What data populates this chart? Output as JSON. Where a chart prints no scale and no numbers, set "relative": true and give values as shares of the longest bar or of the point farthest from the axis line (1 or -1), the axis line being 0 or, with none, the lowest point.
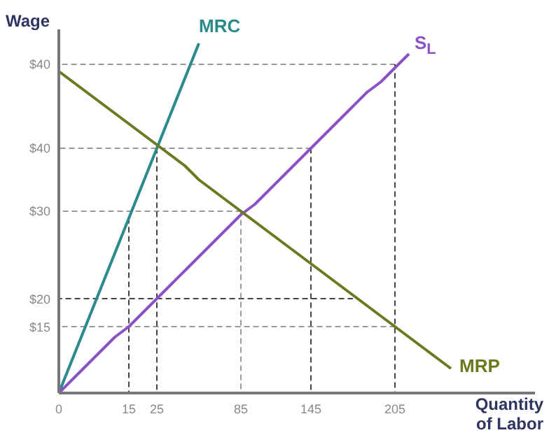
{
  "chart_data": {
    "type": "line",
    "xlabel": "Quantity of Labor",
    "ylabel": "Wage",
    "relative": true,
    "categories": [
      "0",
      null,
      null,
      null,
      null,
      "15",
      null,
      "25",
      null,
      null,
      null,
      null,
      null,
      "85",
      null,
      null,
      null,
      null,
      "145",
      null,
      null,
      null,
      null,
      null,
      "205",
      null,
      null,
      null,
      null,
      null,
      null,
      null,
      null,
      null,
      null
    ],
    "annotations": [
      {
        "text": "$15",
        "x": "0",
        "y": 0.19
      },
      {
        "text": "$20",
        "x": "0",
        "y": 0.27
      },
      {
        "text": "$30",
        "x": "0",
        "y": 0.52
      },
      {
        "text": "$40",
        "x": "0",
        "y": 0.7
      },
      {
        "text": "$40",
        "x": "0",
        "y": 0.94
      }
    ],
    "grid": false,
    "legend": false,
    "marker": "none",
    "series": [
      {
        "color": "#999999",
        "line_style": "dashed",
        "values": [
          0.94,
          0.94,
          0.94,
          0.94,
          0.94,
          0.94,
          0.94,
          0.94,
          0.94,
          0.94,
          0.94,
          0.94,
          0.94,
          0.94,
          0.94,
          0.94,
          0.94,
          0.94,
          0.94,
          0.94,
          0.94,
          0.94,
          0.94,
          0.94,
          0.94,
          null,
          null,
          null,
          null,
          null,
          null,
          null,
          null,
          null,
          null
        ]
      },
      {
        "color": "#999999",
        "line_style": "dashed",
        "values": [
          0.7,
          0.7,
          0.7,
          0.7,
          0.7,
          0.7,
          0.7,
          0.7,
          0.7,
          0.7,
          0.7,
          0.7,
          0.7,
          0.7,
          0.7,
          0.7,
          0.7,
          0.7,
          0.7,
          null,
          null,
          null,
          null,
          null,
          null,
          null,
          null,
          null,
          null,
          null,
          null,
          null,
          null,
          null,
          null
        ]
      },
      {
        "color": "#999999",
        "line_style": "dashed",
        "values": [
          0.52,
          0.52,
          0.52,
          0.52,
          0.52,
          0.52,
          0.52,
          0.52,
          0.52,
          0.52,
          0.52,
          0.52,
          0.52,
          0.52,
          null,
          null,
          null,
          null,
          null,
          null,
          null,
          null,
          null,
          null,
          null,
          null,
          null,
          null,
          null,
          null,
          null,
          null,
          null,
          null,
          null
        ]
      },
      {
        "color": "#444444",
        "line_style": "dashed",
        "values": [
          0.27,
          0.27,
          0.27,
          0.27,
          0.27,
          0.27,
          0.27,
          0.27,
          0.27,
          0.27,
          0.27,
          0.27,
          0.27,
          0.27,
          0.27,
          0.27,
          0.27,
          0.27,
          0.27,
          0.27,
          0.27,
          0.27,
          null,
          null,
          null,
          null,
          null,
          null,
          null,
          null,
          null,
          null,
          null,
          null,
          null
        ]
      },
      {
        "color": "#999999",
        "line_style": "dashed",
        "values": [
          0.19,
          0.19,
          0.19,
          0.19,
          0.19,
          0.19,
          0.19,
          0.19,
          0.19,
          0.19,
          0.19,
          0.19,
          0.19,
          0.19,
          0.19,
          0.19,
          0.19,
          0.19,
          0.19,
          0.19,
          0.19,
          0.19,
          0.19,
          0.19,
          0.19,
          null,
          null,
          null,
          null,
          null,
          null,
          null,
          null,
          null,
          null
        ]
      },
      {
        "color": "#444444",
        "line_style": "dashed",
        "x": [
          "15",
          "15"
        ],
        "values": [
          0,
          0.5
        ]
      },
      {
        "color": "#444444",
        "line_style": "dashed",
        "x": [
          "25",
          "25"
        ],
        "values": [
          0,
          0.7
        ]
      },
      {
        "color": "#999999",
        "line_style": "dashed",
        "x": [
          "85",
          "85"
        ],
        "values": [
          0,
          0.52
        ]
      },
      {
        "color": "#444444",
        "line_style": "dashed",
        "x": [
          "145",
          "145"
        ],
        "values": [
          0,
          0.7
        ]
      },
      {
        "color": "#444444",
        "line_style": "dashed",
        "x": [
          "205",
          "205"
        ],
        "values": [
          0,
          0.94
        ]
      },
      {
        "name": "MRC",
        "color": "#2b8a8c",
        "line_style": "solid",
        "values": [
          0,
          0.1,
          0.2,
          0.3,
          0.4,
          0.5,
          0.6,
          0.7,
          0.8,
          0.9,
          1,
          null,
          null,
          null,
          null,
          null,
          null,
          null,
          null,
          null,
          null,
          null,
          null,
          null,
          null,
          null,
          null,
          null,
          null,
          null,
          null,
          null,
          null,
          null,
          null
        ]
      },
      {
        "name": "S$_{L}$",
        "color": "#8a52c4",
        "line_style": "solid",
        "values": [
          0,
          0.04,
          0.08,
          0.12,
          0.16,
          0.19,
          0.23,
          0.27,
          0.31,
          0.35,
          0.39,
          0.43,
          0.47,
          0.51,
          0.54,
          0.58,
          0.62,
          0.66,
          0.7,
          0.74,
          0.78,
          0.82,
          0.86,
          0.89,
          0.93,
          0.97,
          null,
          null,
          null,
          null,
          null,
          null,
          null,
          null,
          null
        ]
      },
      {
        "name": "MRP",
        "color": "#6b7a1f",
        "line_style": "solid",
        "values": [
          0.92,
          0.89,
          0.86,
          0.83,
          0.8,
          0.77,
          0.74,
          0.71,
          0.68,
          0.65,
          0.61,
          0.58,
          0.55,
          0.52,
          0.49,
          0.46,
          0.43,
          0.4,
          0.37,
          0.34,
          0.31,
          0.28,
          0.25,
          0.22,
          0.19,
          0.16,
          0.13,
          0.1,
          0.07,
          null,
          null,
          null,
          null,
          null,
          null
        ]
      }
    ]
  }
}
